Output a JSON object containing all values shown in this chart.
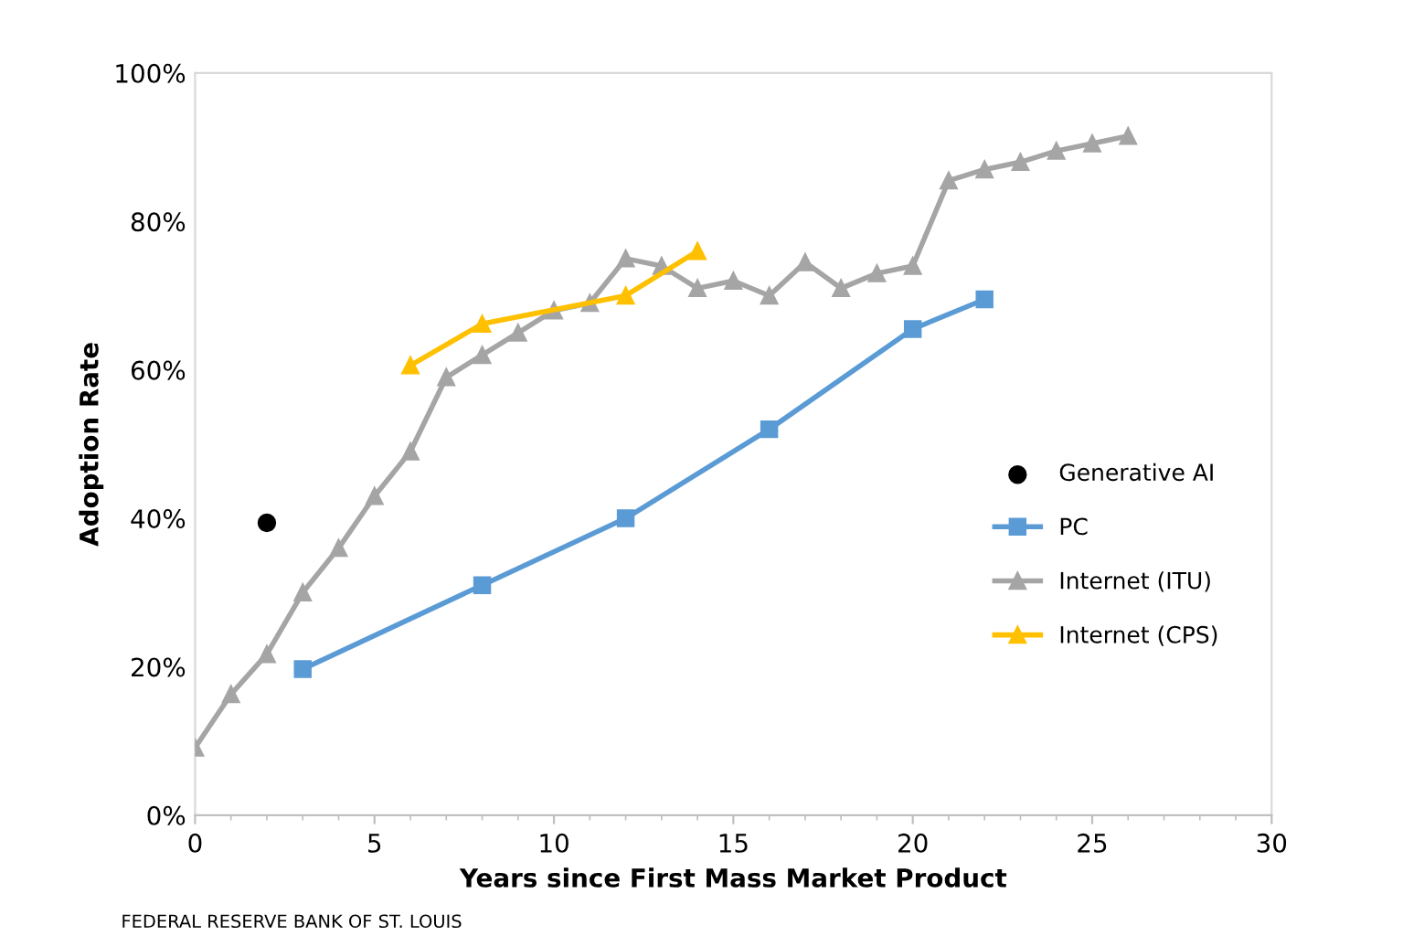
{
  "chart_data": {
    "type": "line",
    "xlabel": "Years since First Mass Market Product",
    "ylabel": "Adoption Rate",
    "xlim": [
      0,
      30
    ],
    "xticks": [
      0,
      5,
      10,
      15,
      20,
      25,
      30
    ],
    "ylim": [
      0,
      100
    ],
    "yticks": [
      {
        "value": 0,
        "label": "0%"
      },
      {
        "value": 20,
        "label": "20%"
      },
      {
        "value": 40,
        "label": "40%"
      },
      {
        "value": 60,
        "label": "60%"
      },
      {
        "value": 80,
        "label": "80%"
      },
      {
        "value": 100,
        "label": "100%"
      }
    ],
    "grid": false,
    "legend": "right",
    "series": [
      {
        "name": "Generative AI",
        "type": "scatter",
        "marker": "circle",
        "color": "#000000",
        "x": [
          2
        ],
        "values": [
          39.4
        ]
      },
      {
        "name": "PC",
        "marker": "square",
        "color": "#5b9bd5",
        "x": [
          3,
          8,
          12,
          16,
          20,
          22
        ],
        "values": [
          19.7,
          31,
          40,
          52,
          65.5,
          69.5
        ]
      },
      {
        "name": "Internet (ITU)",
        "marker": "triangle",
        "color": "#a5a5a5",
        "x": [
          0,
          1,
          2,
          3,
          4,
          5,
          6,
          7,
          8,
          9,
          10,
          11,
          12,
          13,
          14,
          15,
          16,
          17,
          18,
          19,
          20,
          21,
          22,
          23,
          24,
          25,
          26
        ],
        "values": [
          9.1,
          16.3,
          21.7,
          30,
          36,
          43,
          49,
          59,
          62,
          65,
          68,
          69,
          75,
          74,
          71,
          72,
          70,
          74.5,
          71,
          73,
          74,
          85.5,
          87,
          88,
          89.5,
          90.5,
          91.5
        ]
      },
      {
        "name": "Internet (CPS)",
        "marker": "triangle",
        "color": "#ffc000",
        "x": [
          6,
          8,
          12,
          14
        ],
        "values": [
          60.6,
          66.2,
          70,
          76
        ]
      }
    ],
    "annotations": [
      "FEDERAL RESERVE BANK OF ST. LOUIS"
    ]
  }
}
